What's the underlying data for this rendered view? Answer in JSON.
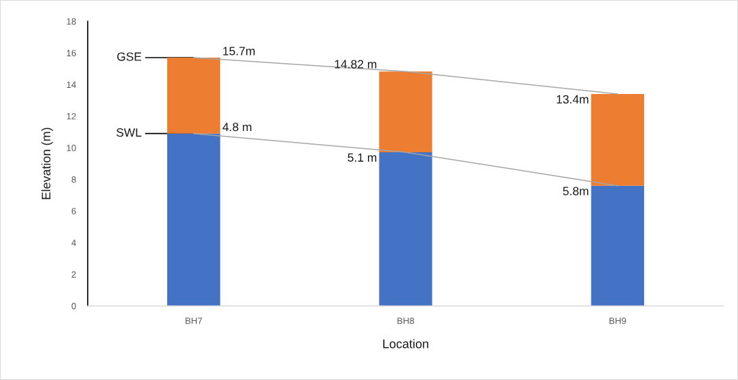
{
  "chart_data": {
    "type": "bar",
    "stacked": true,
    "xlabel": "Location",
    "ylabel": "Elevation (m)",
    "categories": [
      "BH7",
      "BH8",
      "BH9"
    ],
    "series": [
      {
        "color": "#4472c4",
        "values": [
          10.9,
          9.72,
          7.6
        ]
      },
      {
        "color": "#ed7d31",
        "values": [
          4.8,
          5.1,
          5.8
        ]
      },
      {
        "type": "line",
        "color": "#a6a6a6",
        "values": [
          15.7,
          14.82,
          13.4
        ]
      },
      {
        "type": "line",
        "color": "#a6a6a6",
        "values": [
          10.9,
          9.72,
          7.6
        ]
      }
    ],
    "totals": [
      "15.7m",
      "14.82 m",
      "13.4m"
    ],
    "annotations": [
      {
        "text": "GSE",
        "x": "BH7",
        "y": 15.7
      },
      {
        "text": "SWL",
        "x": "BH7",
        "y": 10.9
      },
      {
        "text": "4.8 m",
        "x": "BH7",
        "y": 10.9
      },
      {
        "text": "5.1 m",
        "x": "BH8",
        "y": 9.72
      },
      {
        "text": "5.8m",
        "x": "BH9",
        "y": 7.6
      }
    ],
    "ylim": [
      0,
      18
    ],
    "yticks": [
      0,
      2,
      4,
      6,
      8,
      10,
      12,
      14,
      16,
      18
    ],
    "grid": false,
    "legend": false
  }
}
